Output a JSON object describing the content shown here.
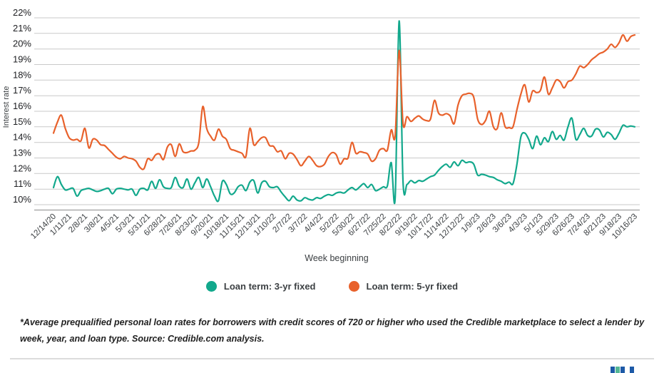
{
  "chart_data": {
    "type": "line",
    "title": "",
    "xlabel": "Week beginning",
    "ylabel": "Interest rate",
    "ylim": [
      10,
      22
    ],
    "grid": "horizontal",
    "legend_position": "bottom",
    "y_tick_labels": [
      "22%",
      "21%",
      "20%",
      "19%",
      "18%",
      "17%",
      "16%",
      "15%",
      "14%",
      "13%",
      "12%",
      "11%",
      "10%"
    ],
    "y_tick_values": [
      22,
      21,
      20,
      19,
      18,
      17,
      16,
      15,
      14,
      13,
      12,
      11,
      10
    ],
    "x_ticks_every_n_points": 4,
    "x_tick_labels": [
      "12/14/20",
      "1/11/21",
      "2/8/21",
      "3/8/21",
      "4/5/21",
      "5/3/21",
      "5/31/21",
      "6/28/21",
      "7/26/21",
      "8/23/21",
      "9/20/21",
      "10/18/21",
      "11/15/21",
      "12/13/21",
      "1/10/22",
      "2/7/22",
      "3/7/22",
      "4/4/22",
      "5/2/22",
      "5/30/22",
      "6/27/22",
      "7/25/22",
      "8/22/22",
      "9/19/22",
      "10/17/22",
      "11/14/22",
      "12/12/22",
      "1/9/23",
      "2/6/23",
      "3/6/23",
      "4/3/23",
      "5/1/23",
      "5/29/23",
      "6/26/23",
      "7/24/23",
      "8/21/23",
      "9/18/23",
      "10/16/23"
    ],
    "series": [
      {
        "name": "Loan term: 3-yr fixed",
        "color": "#12a88c",
        "values": [
          11.1,
          11.8,
          11.3,
          10.95,
          11.0,
          11.05,
          10.55,
          10.9,
          11.0,
          11.05,
          10.95,
          10.85,
          10.9,
          11.0,
          11.05,
          10.7,
          11.0,
          11.05,
          11.0,
          10.95,
          11.0,
          10.6,
          11.0,
          11.05,
          10.95,
          11.5,
          11.05,
          11.6,
          11.15,
          11.05,
          11.1,
          11.75,
          11.2,
          11.1,
          11.65,
          11.0,
          11.4,
          11.75,
          11.1,
          11.65,
          11.15,
          10.55,
          10.25,
          11.5,
          11.3,
          10.7,
          10.75,
          11.15,
          11.25,
          10.9,
          11.45,
          11.55,
          10.75,
          11.4,
          11.5,
          11.15,
          11.1,
          11.15,
          10.8,
          10.5,
          10.25,
          10.55,
          10.3,
          10.25,
          10.45,
          10.35,
          10.3,
          10.45,
          10.4,
          10.55,
          10.65,
          10.6,
          10.75,
          10.8,
          10.75,
          10.95,
          11.1,
          10.95,
          11.15,
          11.35,
          11.1,
          11.3,
          10.9,
          11.0,
          11.15,
          11.2,
          12.7,
          10.45,
          21.8,
          11.45,
          11.3,
          11.55,
          11.4,
          11.55,
          11.5,
          11.65,
          11.8,
          11.9,
          12.2,
          12.45,
          12.6,
          12.4,
          12.75,
          12.5,
          12.85,
          12.7,
          12.75,
          12.6,
          11.9,
          11.95,
          11.9,
          11.8,
          11.75,
          11.6,
          11.5,
          11.35,
          11.45,
          11.35,
          12.6,
          14.35,
          14.6,
          14.2,
          13.6,
          14.4,
          13.85,
          14.3,
          14.05,
          14.7,
          14.2,
          14.45,
          14.15,
          15.0,
          15.55,
          14.2,
          14.5,
          14.9,
          14.45,
          14.4,
          14.85,
          14.8,
          14.35,
          14.65,
          14.5,
          14.2,
          14.6,
          15.1,
          15.0,
          15.05,
          15.0
        ]
      },
      {
        "name": "Loan term: 5-yr fixed",
        "color": "#e8612b",
        "values": [
          14.6,
          15.3,
          15.75,
          14.9,
          14.3,
          14.15,
          14.2,
          14.1,
          14.9,
          13.65,
          14.2,
          14.15,
          13.85,
          13.8,
          13.55,
          13.3,
          13.05,
          12.95,
          13.1,
          13.0,
          12.95,
          12.8,
          12.4,
          12.3,
          12.95,
          12.85,
          13.2,
          13.25,
          12.9,
          13.7,
          13.85,
          13.1,
          13.9,
          13.4,
          13.35,
          13.45,
          13.5,
          14.0,
          16.3,
          14.9,
          14.4,
          14.15,
          14.85,
          14.4,
          14.2,
          13.6,
          13.5,
          13.4,
          13.3,
          13.1,
          14.9,
          13.85,
          14.05,
          14.3,
          14.3,
          13.8,
          13.75,
          13.4,
          13.45,
          12.95,
          13.3,
          13.25,
          12.9,
          12.5,
          12.8,
          13.1,
          12.85,
          12.5,
          12.45,
          12.6,
          13.1,
          13.35,
          13.2,
          12.6,
          12.95,
          13.0,
          14.0,
          13.3,
          13.4,
          13.35,
          13.25,
          12.8,
          12.95,
          13.5,
          13.6,
          13.5,
          14.8,
          14.45,
          19.9,
          15.2,
          15.65,
          15.35,
          15.55,
          15.7,
          15.5,
          15.4,
          15.5,
          16.7,
          15.9,
          15.75,
          15.85,
          15.7,
          15.2,
          16.4,
          17.0,
          17.1,
          17.15,
          16.9,
          15.5,
          15.15,
          15.4,
          16.0,
          15.0,
          14.9,
          15.9,
          15.0,
          14.95,
          15.0,
          16.1,
          17.1,
          17.7,
          16.6,
          17.3,
          17.2,
          17.35,
          18.2,
          17.1,
          17.5,
          18.0,
          17.9,
          17.5,
          17.9,
          18.0,
          18.4,
          18.9,
          18.8,
          19.0,
          19.3,
          19.5,
          19.7,
          19.8,
          20.0,
          20.3,
          20.1,
          20.4,
          20.9,
          20.5,
          20.8,
          20.9
        ]
      }
    ]
  },
  "footnote": "*Average prequalified personal loan rates for borrowers with credit scores of 720 or higher who used the Credible marketplace to select a lender by week, year, and loan type. Source: Credible.com analysis.",
  "colors": {
    "gridline": "#c9c9c9",
    "axis_line": "#ababab",
    "y_tick_label": "#202124",
    "x_tick_label": "#3c4043",
    "axis_title": "#3c4043",
    "series_3yr": "#12a88c",
    "series_5yr": "#e8612b",
    "divider": "#dcdcdc"
  },
  "logo": {
    "bar_colors": [
      "#1d5aa7",
      "#54b795",
      "#1d5aa7",
      "#1d5aa7"
    ]
  }
}
